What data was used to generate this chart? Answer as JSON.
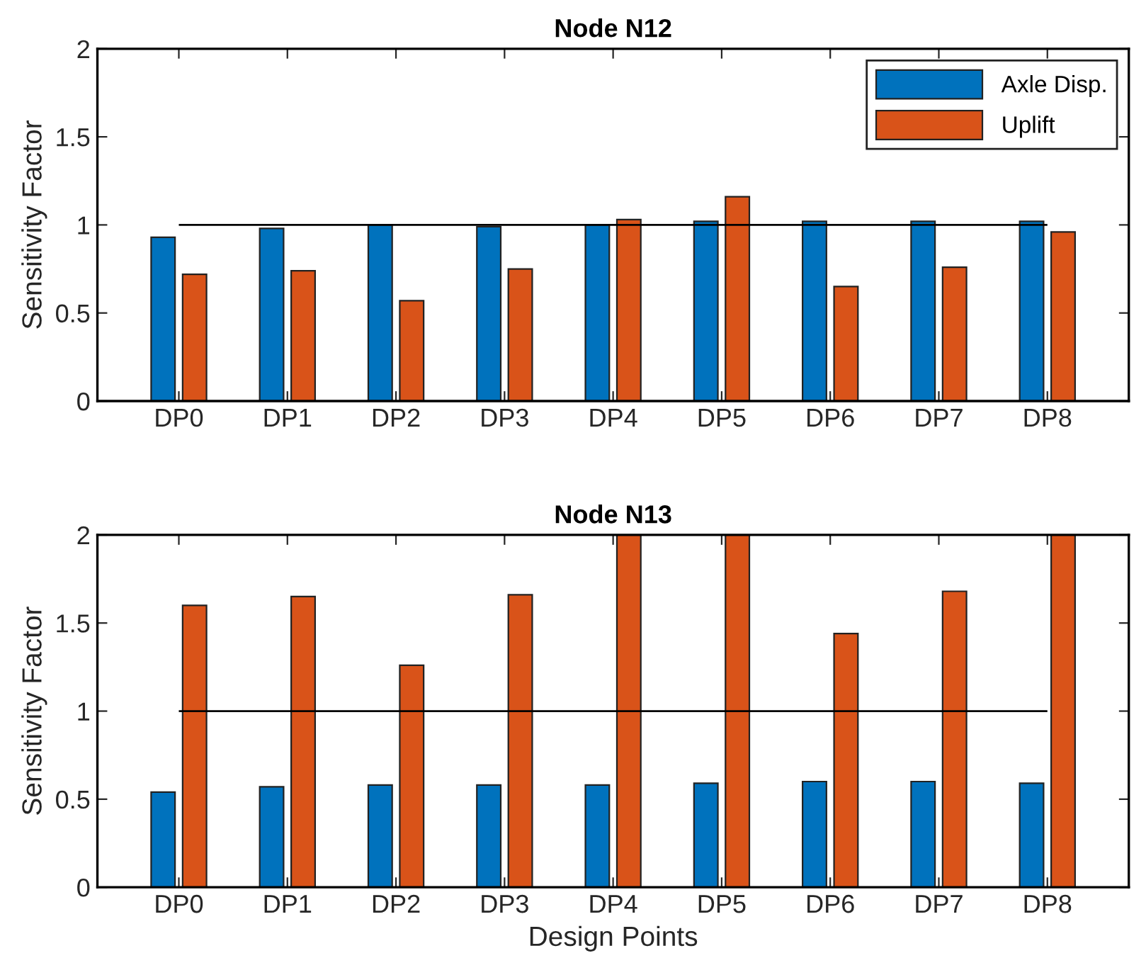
{
  "chart_data": [
    {
      "type": "bar",
      "title": "Node N12",
      "ylabel": "Sensitivity Factor",
      "categories": [
        "DP0",
        "DP1",
        "DP2",
        "DP3",
        "DP4",
        "DP5",
        "DP6",
        "DP7",
        "DP8"
      ],
      "series": [
        {
          "name": "Axle Disp.",
          "color": "#0072bd",
          "values": [
            0.93,
            0.98,
            1.0,
            0.99,
            1.0,
            1.02,
            1.02,
            1.02,
            1.02
          ]
        },
        {
          "name": "Uplift",
          "color": "#d95319",
          "values": [
            0.72,
            0.74,
            0.57,
            0.75,
            1.03,
            1.16,
            0.65,
            0.76,
            0.96
          ]
        }
      ],
      "ylim": [
        0,
        2
      ],
      "yticks": [
        0,
        0.5,
        1,
        1.5,
        2
      ],
      "ref_lines": [
        {
          "axis": "y",
          "value": 1,
          "color": "#000000"
        }
      ],
      "legend": "top right",
      "grid": false
    },
    {
      "type": "bar",
      "title": "Node N13",
      "ylabel": "Sensitivity Factor",
      "xlabel": "Design Points",
      "categories": [
        "DP0",
        "DP1",
        "DP2",
        "DP3",
        "DP4",
        "DP5",
        "DP6",
        "DP7",
        "DP8"
      ],
      "series": [
        {
          "color": "#0072bd",
          "values": [
            0.54,
            0.57,
            0.58,
            0.58,
            0.58,
            0.59,
            0.6,
            0.6,
            0.59
          ]
        },
        {
          "color": "#d95319",
          "values": [
            1.6,
            1.65,
            1.26,
            1.66,
            2,
            2,
            1.44,
            1.68,
            2
          ]
        }
      ],
      "ylim": [
        0,
        2
      ],
      "yticks": [
        0,
        0.5,
        1,
        1.5,
        2
      ],
      "ref_lines": [
        {
          "axis": "y",
          "value": 1,
          "color": "#000000"
        }
      ],
      "legend": false,
      "grid": false
    }
  ]
}
